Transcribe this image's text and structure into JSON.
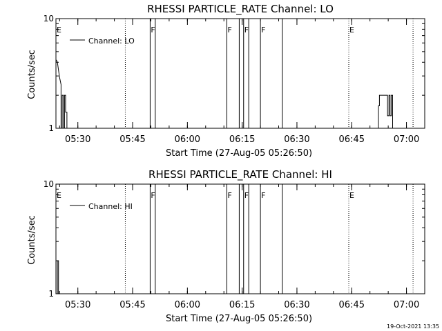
{
  "colors": {
    "background": "#ffffff",
    "foreground": "#000000"
  },
  "footer": {
    "date_stamp": "19-Oct-2021 13:35"
  },
  "chart_data": [
    {
      "type": "line",
      "title": "RHESSI PARTICLE_RATE Channel: LO",
      "xlabel": "Start Time (27-Aug-05 05:26:50)",
      "ylabel": "Counts/sec",
      "yscale": "log",
      "ylim": [
        1,
        10
      ],
      "xlim_minutes": [
        -6.0,
        95.0
      ],
      "x_tick_minutes": [
        0,
        15,
        30,
        45,
        60,
        75,
        90
      ],
      "x_tick_labels": [
        "05:30",
        "05:45",
        "06:00",
        "06:15",
        "06:30",
        "06:45",
        "07:00"
      ],
      "y_tick_values": [
        1,
        10
      ],
      "y_tick_labels": [
        "1",
        "10"
      ],
      "legend": {
        "label": "Channel: LO",
        "position": "top-left"
      },
      "series": [
        {
          "name": "Channel: LO",
          "x_minutes": [
            -5.9,
            -5.6,
            -5.3,
            -5.0,
            -4.6,
            -4.6,
            -4.3,
            -4.3,
            -3.95,
            -3.95,
            -3.65,
            -3.65,
            -3.35,
            -3.35,
            -3.0,
            -3.0,
            82.3,
            82.3,
            82.6,
            82.6,
            82.9,
            82.9,
            84.8,
            84.8,
            85.2,
            85.2,
            85.5,
            85.5,
            85.85,
            85.85,
            86.2,
            86.2
          ],
          "values": [
            4.2,
            4.0,
            3.4,
            2.9,
            2.5,
            1.0,
            1.0,
            2.0,
            2.0,
            1.0,
            1.0,
            2.0,
            2.0,
            1.4,
            1.4,
            1.0,
            1.0,
            1.6,
            1.6,
            2.0,
            2.0,
            2.0,
            2.0,
            1.3,
            1.3,
            2.0,
            2.0,
            1.3,
            1.3,
            2.0,
            2.0,
            1.0
          ]
        }
      ],
      "markers": [
        {
          "label": "E",
          "minute": -6.0,
          "style": "dotted"
        },
        {
          "label": "",
          "minute": 13.0,
          "style": "dotted"
        },
        {
          "label": "F",
          "minute": 19.8,
          "style": "solid"
        },
        {
          "label": "",
          "minute": 21.2,
          "style": "solid"
        },
        {
          "label": "F",
          "minute": 40.8,
          "style": "solid"
        },
        {
          "label": "",
          "minute": 44.2,
          "style": "solid"
        },
        {
          "label": "F",
          "minute": 45.4,
          "style": "solid"
        },
        {
          "label": "",
          "minute": 46.8,
          "style": "solid"
        },
        {
          "label": "F",
          "minute": 50.0,
          "style": "solid"
        },
        {
          "label": "",
          "minute": 56.0,
          "style": "solid"
        },
        {
          "label": "E",
          "minute": 74.2,
          "style": "dotted"
        },
        {
          "label": "",
          "minute": 91.8,
          "style": "dotted"
        }
      ]
    },
    {
      "type": "line",
      "title": "RHESSI PARTICLE_RATE Channel: HI",
      "xlabel": "Start Time (27-Aug-05 05:26:50)",
      "ylabel": "Counts/sec",
      "yscale": "log",
      "ylim": [
        1,
        10
      ],
      "xlim_minutes": [
        -6.0,
        95.0
      ],
      "x_tick_minutes": [
        0,
        15,
        30,
        45,
        60,
        75,
        90
      ],
      "x_tick_labels": [
        "05:30",
        "05:45",
        "06:00",
        "06:15",
        "06:30",
        "06:45",
        "07:00"
      ],
      "y_tick_values": [
        1,
        10
      ],
      "y_tick_labels": [
        "1",
        "10"
      ],
      "legend": {
        "label": "Channel: HI",
        "position": "top-left"
      },
      "series": [
        {
          "name": "Channel: HI",
          "x_minutes": [
            -5.6,
            -5.6,
            -5.3,
            -5.3
          ],
          "values": [
            1.0,
            2.0,
            2.0,
            1.0
          ]
        }
      ],
      "markers": [
        {
          "label": "E",
          "minute": -6.0,
          "style": "dotted"
        },
        {
          "label": "",
          "minute": 13.0,
          "style": "dotted"
        },
        {
          "label": "F",
          "minute": 19.8,
          "style": "solid"
        },
        {
          "label": "",
          "minute": 21.2,
          "style": "solid"
        },
        {
          "label": "F",
          "minute": 40.8,
          "style": "solid"
        },
        {
          "label": "",
          "minute": 44.2,
          "style": "solid"
        },
        {
          "label": "F",
          "minute": 45.4,
          "style": "solid"
        },
        {
          "label": "",
          "minute": 46.8,
          "style": "solid"
        },
        {
          "label": "F",
          "minute": 50.0,
          "style": "solid"
        },
        {
          "label": "",
          "minute": 56.0,
          "style": "solid"
        },
        {
          "label": "E",
          "minute": 74.2,
          "style": "dotted"
        },
        {
          "label": "",
          "minute": 91.8,
          "style": "dotted"
        }
      ]
    }
  ]
}
